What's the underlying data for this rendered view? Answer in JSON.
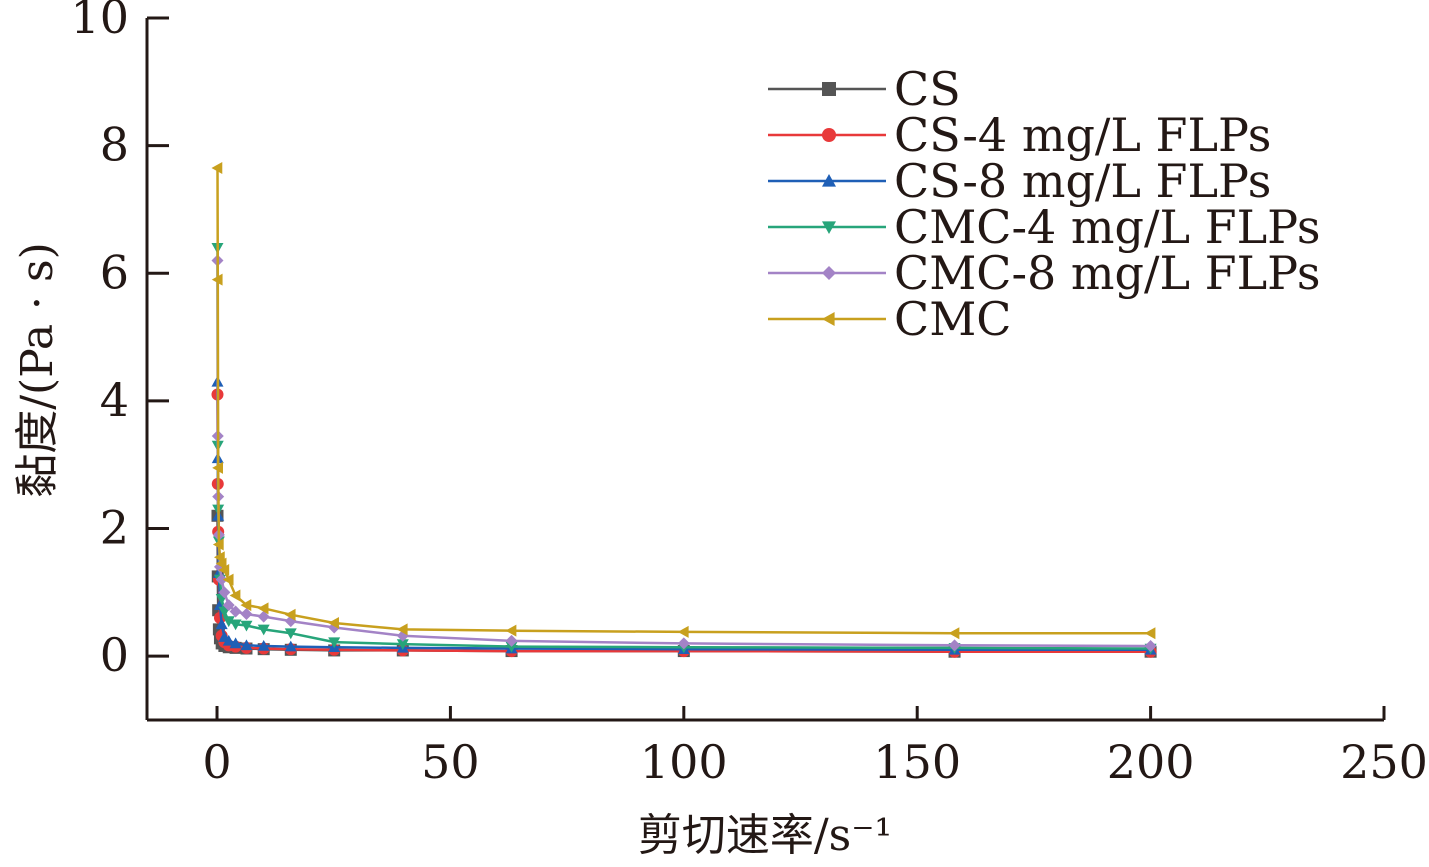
{
  "chart_data": {
    "type": "line",
    "xlabel": "剪切速率/s⁻¹",
    "ylabel": "黏度/(Pa · s)",
    "xlim": [
      -15,
      250
    ],
    "ylim": [
      -1,
      10
    ],
    "xticks": [
      0,
      50,
      100,
      150,
      200,
      250
    ],
    "yticks": [
      0,
      2,
      4,
      6,
      8,
      10
    ],
    "x_tick_labels": [
      "0",
      "50",
      "100",
      "150",
      "200",
      "250"
    ],
    "y_tick_labels": [
      "0",
      "2",
      "4",
      "6",
      "8",
      "10"
    ],
    "legend_position": "top-right",
    "grid": false,
    "x": [
      0.1,
      0.16,
      0.25,
      0.4,
      0.63,
      1,
      1.58,
      2.51,
      3.98,
      6.31,
      10,
      15.8,
      25.1,
      39.8,
      63.1,
      100,
      158,
      200
    ],
    "series": [
      {
        "name": "CS",
        "color": "#555555",
        "marker": "square",
        "values": [
          2.2,
          1.25,
          0.72,
          0.42,
          0.28,
          0.2,
          0.16,
          0.14,
          0.13,
          0.12,
          0.11,
          0.1,
          0.09,
          0.09,
          0.08,
          0.08,
          0.07,
          0.07
        ]
      },
      {
        "name": "CS-4 mg/L FLPs",
        "color": "#e8393a",
        "marker": "circle",
        "values": [
          4.1,
          2.7,
          1.95,
          1.2,
          0.6,
          0.32,
          0.22,
          0.17,
          0.15,
          0.13,
          0.12,
          0.11,
          0.1,
          0.09,
          0.08,
          0.08,
          0.07,
          0.07
        ]
      },
      {
        "name": "CS-8 mg/L FLPs",
        "color": "#1f5fb6",
        "marker": "triangle-up",
        "values": [
          4.3,
          3.1,
          2.2,
          1.3,
          0.8,
          0.5,
          0.3,
          0.24,
          0.2,
          0.17,
          0.16,
          0.15,
          0.14,
          0.13,
          0.12,
          0.11,
          0.1,
          0.1
        ]
      },
      {
        "name": "CMC-4 mg/L FLPs",
        "color": "#27a57a",
        "marker": "triangle-down",
        "values": [
          6.4,
          3.3,
          2.3,
          1.8,
          1.2,
          0.9,
          0.7,
          0.55,
          0.5,
          0.48,
          0.42,
          0.36,
          0.22,
          0.19,
          0.15,
          0.14,
          0.13,
          0.12
        ]
      },
      {
        "name": "CMC-8 mg/L FLPs",
        "color": "#a383c6",
        "marker": "diamond",
        "values": [
          6.2,
          3.45,
          2.5,
          1.9,
          1.4,
          1.2,
          1.0,
          0.8,
          0.7,
          0.66,
          0.62,
          0.55,
          0.45,
          0.32,
          0.24,
          0.2,
          0.17,
          0.16
        ]
      },
      {
        "name": "CMC",
        "color": "#c8a01e",
        "marker": "triangle-left",
        "values": [
          7.65,
          5.9,
          2.95,
          1.75,
          1.55,
          1.45,
          1.35,
          1.2,
          0.95,
          0.8,
          0.75,
          0.65,
          0.52,
          0.42,
          0.4,
          0.38,
          0.36,
          0.36
        ]
      }
    ]
  }
}
